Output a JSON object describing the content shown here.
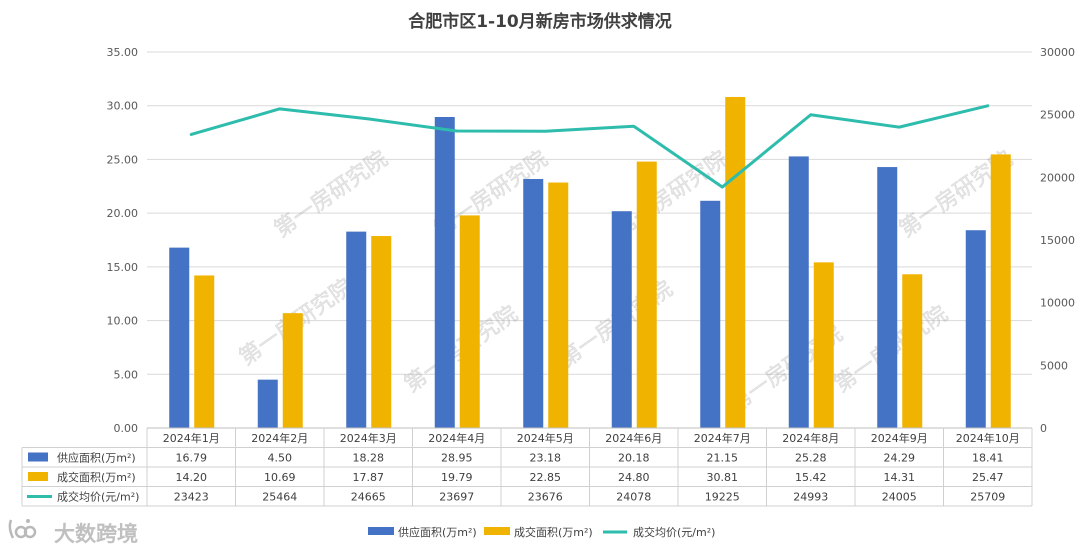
{
  "chart_data": {
    "type": "bar",
    "title": "合肥市区1-10月新房市场供求情况",
    "categories": [
      "2024年1月",
      "2024年2月",
      "2024年3月",
      "2024年4月",
      "2024年5月",
      "2024年6月",
      "2024年7月",
      "2024年8月",
      "2024年9月",
      "2024年10月"
    ],
    "series": [
      {
        "name": "供应面积(万m²)",
        "type": "bar",
        "axis": "left",
        "color": "#4472C4",
        "values": [
          16.79,
          4.5,
          18.28,
          28.95,
          23.18,
          20.18,
          21.15,
          25.28,
          24.29,
          18.41
        ],
        "labels": [
          "16.79",
          "4.50",
          "18.28",
          "28.95",
          "23.18",
          "20.18",
          "21.15",
          "25.28",
          "24.29",
          "18.41"
        ]
      },
      {
        "name": "成交面积(万m²)",
        "type": "bar",
        "axis": "left",
        "color": "#F0B400",
        "values": [
          14.2,
          10.69,
          17.87,
          19.79,
          22.85,
          24.8,
          30.81,
          15.42,
          14.31,
          25.47
        ],
        "labels": [
          "14.20",
          "10.69",
          "17.87",
          "19.79",
          "22.85",
          "24.80",
          "30.81",
          "15.42",
          "14.31",
          "25.47"
        ]
      },
      {
        "name": "成交均价(元/m²)",
        "type": "line",
        "axis": "right",
        "color": "#2EBCAD",
        "values": [
          23423,
          25464,
          24665,
          23697,
          23676,
          24078,
          19225,
          24993,
          24005,
          25709
        ],
        "labels": [
          "23423",
          "25464",
          "24665",
          "23697",
          "23676",
          "24078",
          "19225",
          "24993",
          "24005",
          "25709"
        ]
      }
    ],
    "y_left": {
      "min": 0,
      "max": 35,
      "ticks": [
        "0.00",
        "5.00",
        "10.00",
        "15.00",
        "20.00",
        "25.00",
        "30.00",
        "35.00"
      ]
    },
    "y_right": {
      "min": 0,
      "max": 30000,
      "ticks": [
        "0",
        "5000",
        "10000",
        "15000",
        "20000",
        "25000",
        "30000"
      ]
    },
    "grid": true,
    "legend_position": "bottom",
    "data_table": true
  },
  "watermark": "第一房研究院",
  "logo": {
    "text": "大数跨境"
  }
}
